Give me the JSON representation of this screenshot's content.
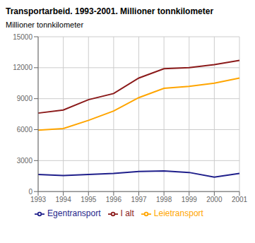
{
  "chart_data": {
    "type": "line",
    "title": "Transportarbeid. 1993-2001. Millioner tonnkilometer",
    "ylabel": "Millioner tonnkilometer",
    "categories": [
      "1993",
      "1994",
      "1995",
      "1996",
      "1997",
      "1998",
      "1999",
      "2000",
      "2001"
    ],
    "series": [
      {
        "name": "I alt",
        "color": "#8B1A1A",
        "values": [
          7600,
          7900,
          8900,
          9500,
          11000,
          11900,
          12000,
          12300,
          12700
        ]
      },
      {
        "name": "Leietransport",
        "color": "#FFA500",
        "values": [
          5950,
          6100,
          6900,
          7800,
          9100,
          10000,
          10200,
          10500,
          11000
        ]
      },
      {
        "name": "Egentransport",
        "color": "#1F1F8B",
        "values": [
          1650,
          1550,
          1650,
          1750,
          1950,
          2000,
          1850,
          1400,
          1750
        ]
      }
    ],
    "ylim": [
      0,
      15000
    ],
    "yticks": [
      0,
      3000,
      6000,
      9000,
      12000,
      15000
    ],
    "grid": true,
    "legend": "bottom"
  }
}
